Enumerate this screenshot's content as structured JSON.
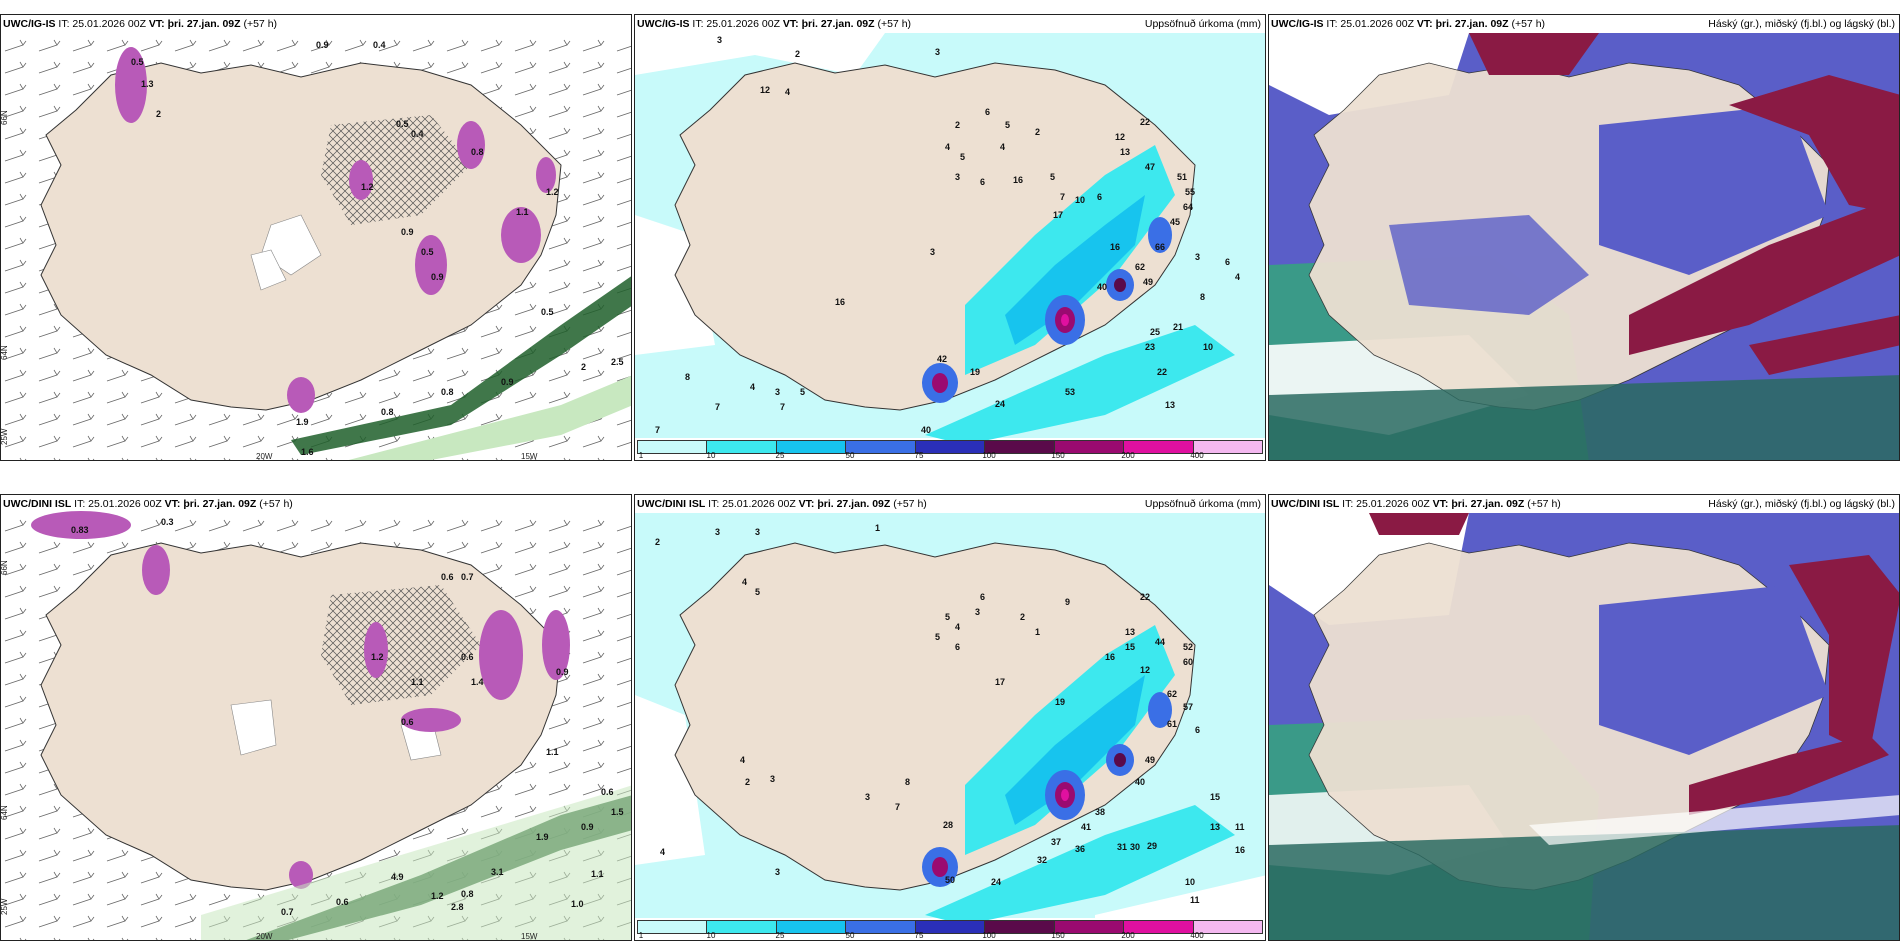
{
  "panels": {
    "p1": {
      "source": "UWC/IG-IS",
      "it": "IT: 25.01.2026 00Z",
      "vt": "VT: þri. 27.jan. 09Z",
      "lead": "(+57 h)",
      "right_title": ""
    },
    "p2": {
      "source": "UWC/IG-IS",
      "it": "IT: 25.01.2026 00Z",
      "vt": "VT: þri. 27.jan. 09Z",
      "lead": "(+57 h)",
      "right_title": "Uppsöfnuð úrkoma (mm)"
    },
    "p3": {
      "source": "UWC/IG-IS",
      "it": "IT: 25.01.2026 00Z",
      "vt": "VT: þri. 27.jan. 09Z",
      "lead": "(+57 h)",
      "right_title": "Háský (gr.), miðský (fj.bl.) og lágský (bl.)"
    },
    "p4": {
      "source": "UWC/DINI ISL",
      "it": "IT: 25.01.2026 00Z",
      "vt": "VT: þri. 27.jan. 09Z",
      "lead": "(+57 h)",
      "right_title": ""
    },
    "p5": {
      "source": "UWC/DINI ISL",
      "it": "IT: 25.01.2026 00Z",
      "vt": "VT: þri. 27.jan. 09Z",
      "lead": "(+57 h)",
      "right_title": "Uppsöfnuð úrkoma (mm)"
    },
    "p6": {
      "source": "UWC/DINI ISL",
      "it": "IT: 25.01.2026 00Z",
      "vt": "VT: þri. 27.jan. 09Z",
      "lead": "(+57 h)",
      "right_title": "Háský (gr.), miðský (fj.bl.) og lágský (bl.)"
    }
  },
  "axes": {
    "lon_20": "20W",
    "lon_15": "15W",
    "lat_66": "66N",
    "lat_64": "64N",
    "lat_25": "25W"
  },
  "colorbar": {
    "ticks": [
      "1",
      "10",
      "25",
      "50",
      "75",
      "100",
      "150",
      "200",
      "400"
    ],
    "colors": [
      "#c8fafa",
      "#3de8ee",
      "#17c4ee",
      "#3a6fe6",
      "#2a2fb8",
      "#5a0a4a",
      "#9a0a70",
      "#e010a0",
      "#f4b8f0"
    ]
  },
  "precip_labels_top": [
    "3",
    "2",
    "3",
    "4",
    "12",
    "2",
    "6",
    "5",
    "2",
    "4",
    "5",
    "4",
    "3",
    "6",
    "16",
    "5",
    "7",
    "17",
    "10",
    "6",
    "22",
    "12",
    "13",
    "47",
    "51",
    "55",
    "64",
    "45",
    "16",
    "66",
    "62",
    "49",
    "40",
    "19",
    "42",
    "53",
    "24",
    "40",
    "22",
    "13",
    "23",
    "25",
    "21",
    "10",
    "8",
    "4",
    "3",
    "6",
    "7",
    "7",
    "7",
    "8",
    "3",
    "5",
    "4",
    "16",
    "3"
  ],
  "precip_labels_bottom": [
    "3",
    "1",
    "2",
    "3",
    "4",
    "5",
    "6",
    "5",
    "3",
    "4",
    "5",
    "1",
    "2",
    "6",
    "17",
    "9",
    "19",
    "13",
    "15",
    "22",
    "12",
    "16",
    "44",
    "52",
    "60",
    "62",
    "57",
    "61",
    "49",
    "40",
    "38",
    "41",
    "36",
    "37",
    "32",
    "31",
    "30",
    "29",
    "50",
    "28",
    "24",
    "13",
    "11",
    "15",
    "16",
    "10",
    "11",
    "6",
    "4",
    "3",
    "2",
    "3",
    "4",
    "3",
    "7",
    "8"
  ],
  "snow_labels_top": [
    "0.9",
    "0.4",
    "0.5",
    "1.3",
    "2",
    "0.5",
    "0.4",
    "1.2",
    "0.8",
    "0.9",
    "0.5",
    "0.9",
    "1.1",
    "1.2",
    "0.5",
    "0.9",
    "0.8",
    "0.8",
    "2",
    "2.5",
    "1.9",
    "1.6"
  ],
  "snow_labels_bottom": [
    "0.3",
    "0.83",
    "0.6",
    "0.7",
    "1.2",
    "0.6",
    "1.1",
    "1.4",
    "0.6",
    "0.9",
    "1.1",
    "0.9",
    "1.5",
    "0.6",
    "4.9",
    "3.1",
    "2.8",
    "1.2",
    "0.8",
    "1.9",
    "0.7",
    "0.6",
    "1.1",
    "1.0"
  ]
}
